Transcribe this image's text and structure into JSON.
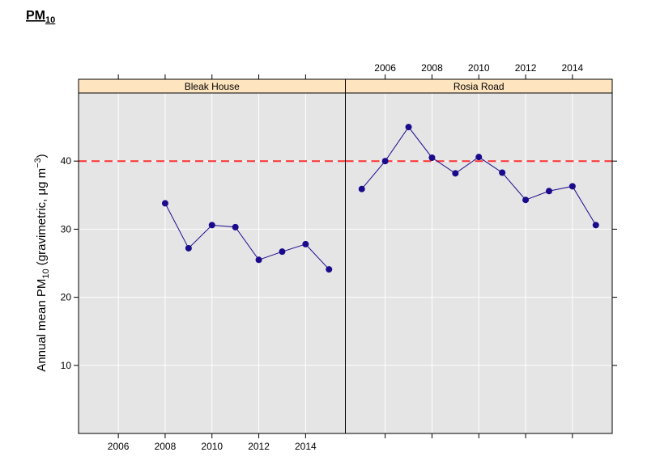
{
  "chart_data": {
    "type": "line",
    "title": [
      "PM",
      "10"
    ],
    "y_label": [
      "Annual mean PM",
      "10",
      " (gravimetric, μg m",
      "−3",
      ")"
    ],
    "xlim": [
      2004.3,
      2015.7
    ],
    "xticks": [
      2006,
      2008,
      2010,
      2012,
      2014
    ],
    "ylim": [
      0,
      50
    ],
    "yticks": [
      10,
      20,
      30,
      40
    ],
    "grid": true,
    "color": "#1a0a8c",
    "reference_line": {
      "value": 40,
      "color": "#ff3030"
    },
    "panels": [
      {
        "name": "Bleak House",
        "x": [
          2008,
          2009,
          2010,
          2011,
          2012,
          2013,
          2014,
          2015
        ],
        "values": [
          33.8,
          27.2,
          30.6,
          30.3,
          25.5,
          26.7,
          27.8,
          24.1
        ]
      },
      {
        "name": "Rosia Road",
        "x": [
          2005,
          2006,
          2007,
          2008,
          2009,
          2010,
          2011,
          2012,
          2013,
          2014,
          2015
        ],
        "values": [
          35.9,
          40.0,
          45.0,
          40.5,
          38.2,
          40.6,
          38.3,
          34.3,
          35.6,
          36.3,
          30.6
        ]
      }
    ]
  }
}
